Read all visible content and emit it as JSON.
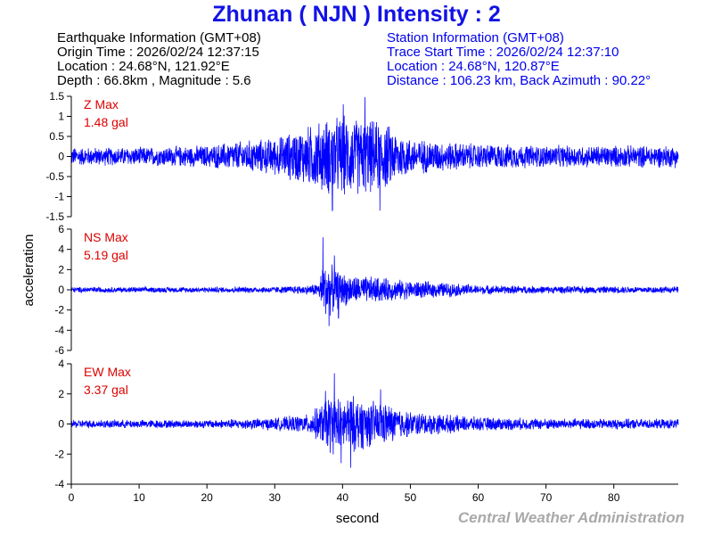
{
  "title": "Zhunan ( NJN ) Intensity : 2",
  "earthquake_info": {
    "header": "Earthquake Information (GMT+08)",
    "origin_time": "Origin Time : 2026/02/24 12:37:15",
    "location": "Location : 24.68°N, 121.92°E",
    "depth_magnitude": "Depth : 66.8km , Magnitude : 5.6"
  },
  "station_info": {
    "header": "Station Information (GMT+08)",
    "trace_start": "Trace Start Time : 2026/02/24 12:37:10",
    "location": "Location : 24.68°N, 120.87°E",
    "distance": "Distance : 106.23 km, Back Azimuth : 90.22°"
  },
  "credit": "Central Weather Administration",
  "colors": {
    "title": "#1212e6",
    "trace": "#0000ff",
    "max_label": "#dd0000",
    "station_info": "#0000ee",
    "credit": "#a9a9a9"
  },
  "chart_data": {
    "type": "line",
    "xlabel": "second",
    "ylabel": "acceleration",
    "xlim": [
      0,
      89.5
    ],
    "x_ticks": [
      0,
      10,
      20,
      30,
      40,
      50,
      60,
      70,
      80
    ],
    "panels": [
      {
        "name": "Z",
        "max_label": "Z Max",
        "max_value": "1.48 gal",
        "ylim": [
          -1.5,
          1.5
        ],
        "y_ticks": [
          1.5,
          1,
          0.5,
          0,
          -0.5,
          -1,
          -1.5
        ],
        "envelope": [
          [
            0,
            0.25
          ],
          [
            10,
            0.25
          ],
          [
            20,
            0.3
          ],
          [
            24,
            0.4
          ],
          [
            30,
            0.5
          ],
          [
            33,
            0.7
          ],
          [
            36,
            0.9
          ],
          [
            38,
            1.05
          ],
          [
            40,
            1.1
          ],
          [
            42,
            1.05
          ],
          [
            44,
            1.0
          ],
          [
            46,
            0.95
          ],
          [
            48,
            0.7
          ],
          [
            50,
            0.5
          ],
          [
            55,
            0.4
          ],
          [
            60,
            0.35
          ],
          [
            70,
            0.3
          ],
          [
            80,
            0.3
          ],
          [
            89.5,
            0.3
          ]
        ],
        "peaks": [
          [
            38.5,
            -1.35
          ],
          [
            43.3,
            1.48
          ],
          [
            45.5,
            -1.35
          ],
          [
            40.1,
            1.3
          ]
        ]
      },
      {
        "name": "NS",
        "max_label": "NS Max",
        "max_value": "5.19 gal",
        "ylim": [
          -6,
          6
        ],
        "y_ticks": [
          6,
          4,
          2,
          0,
          -2,
          -4,
          -6
        ],
        "envelope": [
          [
            0,
            0.3
          ],
          [
            20,
            0.3
          ],
          [
            30,
            0.35
          ],
          [
            35,
            0.5
          ],
          [
            36.5,
            0.8
          ],
          [
            37.2,
            3.0
          ],
          [
            38,
            2.8
          ],
          [
            39,
            2.2
          ],
          [
            40,
            1.8
          ],
          [
            42,
            1.5
          ],
          [
            45,
            1.4
          ],
          [
            48,
            1.1
          ],
          [
            52,
            0.9
          ],
          [
            55,
            0.8
          ],
          [
            60,
            0.5
          ],
          [
            70,
            0.4
          ],
          [
            89.5,
            0.35
          ]
        ],
        "peaks": [
          [
            37.1,
            5.19
          ],
          [
            38.0,
            -3.6
          ],
          [
            38.8,
            3.4
          ],
          [
            39.4,
            -2.8
          ]
        ]
      },
      {
        "name": "EW",
        "max_label": "EW Max",
        "max_value": "3.37 gal",
        "ylim": [
          -4,
          4
        ],
        "y_ticks": [
          4,
          2,
          0,
          -2,
          -4
        ],
        "envelope": [
          [
            0,
            0.3
          ],
          [
            20,
            0.3
          ],
          [
            30,
            0.45
          ],
          [
            35,
            0.7
          ],
          [
            37,
            1.5
          ],
          [
            38,
            2.2
          ],
          [
            40,
            2.0
          ],
          [
            42,
            2.0
          ],
          [
            44,
            1.7
          ],
          [
            46,
            1.6
          ],
          [
            48,
            1.2
          ],
          [
            50,
            0.9
          ],
          [
            55,
            0.7
          ],
          [
            60,
            0.5
          ],
          [
            70,
            0.4
          ],
          [
            89.5,
            0.35
          ]
        ],
        "peaks": [
          [
            38.8,
            3.37
          ],
          [
            39.8,
            -2.6
          ],
          [
            41.2,
            -2.9
          ],
          [
            45.6,
            2.3
          ],
          [
            37.5,
            2.2
          ]
        ]
      }
    ]
  }
}
